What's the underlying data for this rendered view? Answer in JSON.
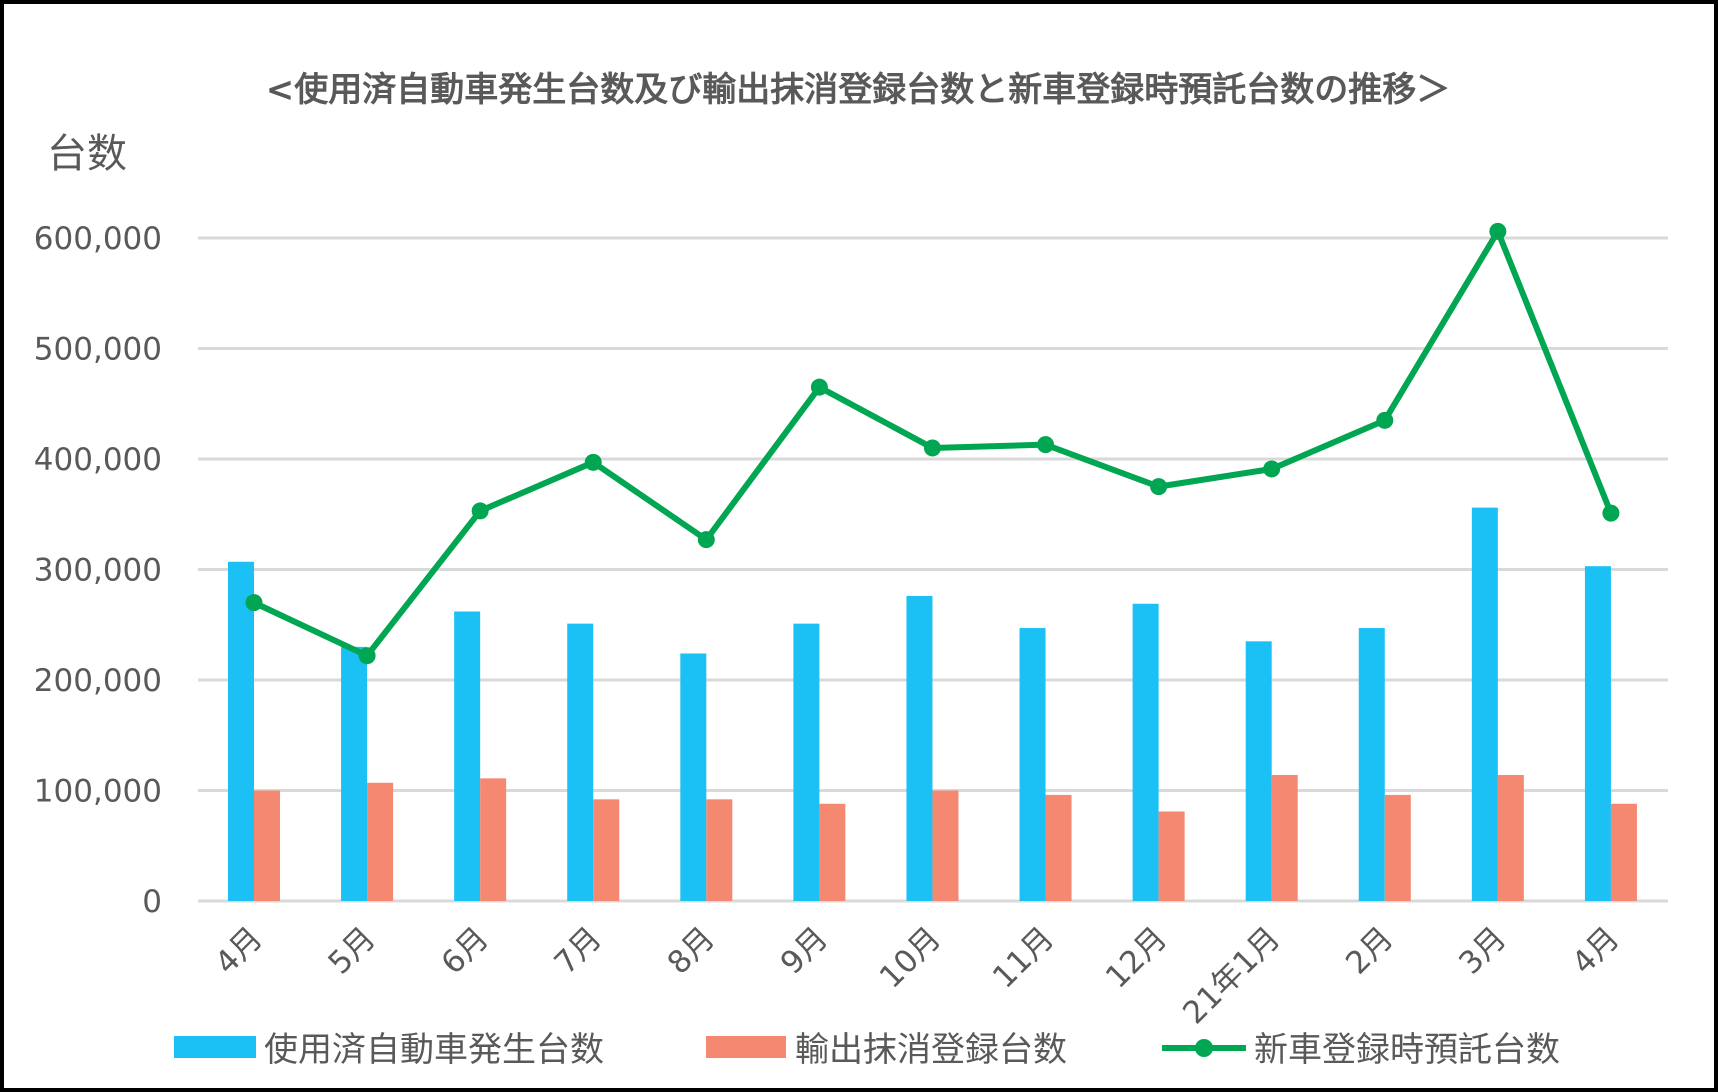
{
  "chart_data": {
    "type": "bar",
    "title": "<使用済自動車発生台数及び輸出抹消登録台数と新車登録時預託台数の推移＞",
    "ylabel": "台数",
    "xlabel": "",
    "categories": [
      "4月",
      "5月",
      "6月",
      "7月",
      "8月",
      "9月",
      "10月",
      "11月",
      "12月",
      "21年1月",
      "2月",
      "3月",
      "4月"
    ],
    "ylim": [
      0,
      600000
    ],
    "yticks": [
      0,
      100000,
      200000,
      300000,
      400000,
      500000,
      600000
    ],
    "ytick_labels": [
      "0",
      "100,000",
      "200,000",
      "300,000",
      "400,000",
      "500,000",
      "600,000"
    ],
    "grid": true,
    "legend_position": "bottom",
    "series": [
      {
        "name": "使用済自動車発生台数",
        "type": "bar",
        "color": "#1bc1f5",
        "values": [
          307000,
          230000,
          262000,
          251000,
          224000,
          251000,
          276000,
          247000,
          269000,
          235000,
          247000,
          356000,
          303000
        ]
      },
      {
        "name": "輸出抹消登録台数",
        "type": "bar",
        "color": "#f58870",
        "values": [
          100000,
          107000,
          111000,
          92000,
          92000,
          88000,
          100000,
          96000,
          81000,
          114000,
          96000,
          114000,
          88000
        ]
      },
      {
        "name": "新車登録時預託台数",
        "type": "line",
        "color": "#00a651",
        "values": [
          270000,
          222000,
          353000,
          397000,
          327000,
          465000,
          410000,
          413000,
          375000,
          391000,
          435000,
          606000,
          351000
        ]
      }
    ]
  }
}
